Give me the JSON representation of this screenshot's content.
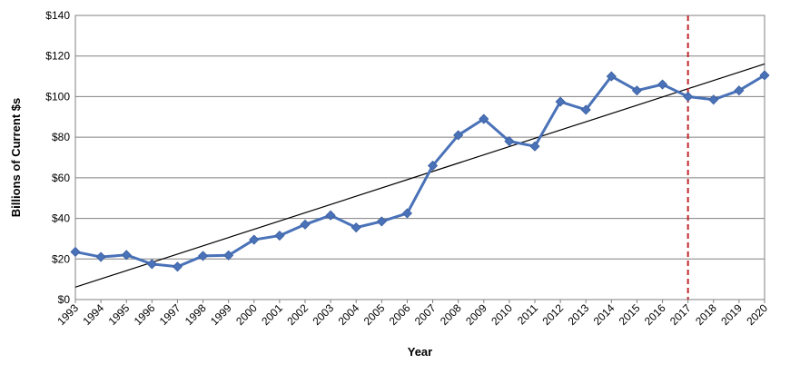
{
  "chart_data": {
    "type": "line",
    "title": "",
    "xlabel": "Year",
    "ylabel": "Billions of Current $s",
    "x": [
      "1993",
      "1994",
      "1995",
      "1996",
      "1997",
      "1998",
      "1999",
      "2000",
      "2001",
      "2002",
      "2003",
      "2004",
      "2005",
      "2006",
      "2007",
      "2008",
      "2009",
      "2010",
      "2011",
      "2012",
      "2013",
      "2014",
      "2015",
      "2016",
      "2017",
      "2018",
      "2019",
      "2020"
    ],
    "series": [
      {
        "values": [
          23.5,
          21,
          22,
          17.5,
          16.2,
          21.5,
          21.8,
          29.5,
          31.5,
          37,
          41.5,
          35.5,
          38.5,
          42.5,
          66,
          81,
          89,
          78,
          75.5,
          97.5,
          93.5,
          110,
          103,
          106,
          100,
          98.5,
          103,
          110.5
        ],
        "color": "#4a72b8",
        "marker": "diamond"
      }
    ],
    "trendline": {
      "type": "linear",
      "color": "#000000"
    },
    "vline": {
      "at": "2017",
      "style": "dashed",
      "color": "#c0282d"
    },
    "ylim": [
      0,
      140
    ],
    "yticks": [
      0,
      20,
      40,
      60,
      80,
      100,
      120,
      140
    ],
    "ytick_labels": [
      "$0",
      "$20",
      "$40",
      "$60",
      "$80",
      "$100",
      "$120",
      "$140"
    ],
    "grid": "horizontal",
    "legend": "none"
  }
}
